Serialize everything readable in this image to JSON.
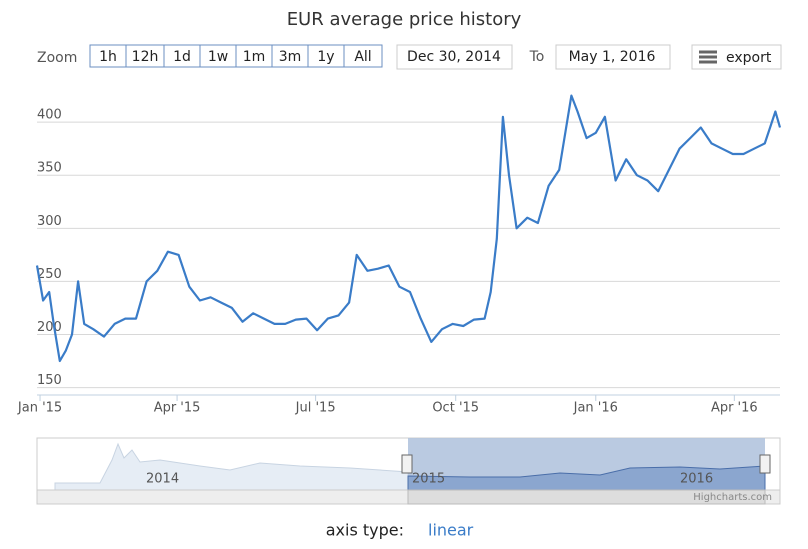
{
  "chart_data": {
    "type": "line",
    "title": "EUR average price history",
    "color": "#3a7cc8",
    "x": [
      "2014-12-30",
      "2015-01-03",
      "2015-01-07",
      "2015-01-10",
      "2015-01-14",
      "2015-01-18",
      "2015-01-22",
      "2015-01-26",
      "2015-01-30",
      "2015-02-05",
      "2015-02-12",
      "2015-02-19",
      "2015-02-26",
      "2015-03-05",
      "2015-03-12",
      "2015-03-19",
      "2015-03-26",
      "2015-04-02",
      "2015-04-09",
      "2015-04-16",
      "2015-04-23",
      "2015-04-30",
      "2015-05-07",
      "2015-05-14",
      "2015-05-21",
      "2015-05-28",
      "2015-06-04",
      "2015-06-11",
      "2015-06-18",
      "2015-06-25",
      "2015-07-02",
      "2015-07-09",
      "2015-07-16",
      "2015-07-23",
      "2015-07-28",
      "2015-08-04",
      "2015-08-11",
      "2015-08-18",
      "2015-08-25",
      "2015-09-01",
      "2015-09-08",
      "2015-09-15",
      "2015-09-22",
      "2015-09-29",
      "2015-10-06",
      "2015-10-13",
      "2015-10-20",
      "2015-10-24",
      "2015-10-28",
      "2015-11-01",
      "2015-11-05",
      "2015-11-10",
      "2015-11-17",
      "2015-11-24",
      "2015-12-01",
      "2015-12-08",
      "2015-12-16",
      "2015-12-20",
      "2015-12-26",
      "2016-01-01",
      "2016-01-07",
      "2016-01-14",
      "2016-01-21",
      "2016-01-28",
      "2016-02-04",
      "2016-02-11",
      "2016-02-18",
      "2016-02-25",
      "2016-03-03",
      "2016-03-10",
      "2016-03-17",
      "2016-03-24",
      "2016-03-31",
      "2016-04-07",
      "2016-04-14",
      "2016-04-21",
      "2016-04-28",
      "2016-05-01"
    ],
    "values": [
      265,
      232,
      240,
      210,
      175,
      185,
      200,
      250,
      210,
      205,
      198,
      210,
      215,
      215,
      250,
      260,
      278,
      275,
      245,
      232,
      235,
      230,
      225,
      212,
      220,
      215,
      210,
      210,
      214,
      215,
      204,
      215,
      218,
      230,
      275,
      260,
      262,
      265,
      245,
      240,
      215,
      193,
      205,
      210,
      208,
      214,
      215,
      240,
      290,
      405,
      350,
      300,
      310,
      305,
      340,
      355,
      425,
      410,
      385,
      390,
      405,
      345,
      365,
      350,
      345,
      335,
      355,
      375,
      385,
      395,
      380,
      375,
      370,
      370,
      375,
      380,
      410,
      395
    ],
    "xlim": [
      "2014-12-30",
      "2016-05-01"
    ],
    "xticks": [
      {
        "value": "2015-01-01",
        "label": "Jan '15"
      },
      {
        "value": "2015-04-01",
        "label": "Apr '15"
      },
      {
        "value": "2015-07-01",
        "label": "Jul '15"
      },
      {
        "value": "2015-10-01",
        "label": "Oct '15"
      },
      {
        "value": "2016-01-01",
        "label": "Jan '16"
      },
      {
        "value": "2016-04-01",
        "label": "Apr '16"
      }
    ],
    "ylim": [
      143,
      435
    ],
    "yticks": [
      150,
      200,
      250,
      300,
      350,
      400
    ],
    "grid": true
  },
  "range_selector": {
    "zoom_label": "Zoom",
    "buttons": [
      "1h",
      "12h",
      "1d",
      "1w",
      "1m",
      "3m",
      "1y",
      "All"
    ],
    "from": "Dec 30, 2014",
    "to_label": "To",
    "to": "May 1, 2016"
  },
  "export": "export",
  "navigator_labels": [
    "2014",
    "2015",
    "2016"
  ],
  "credits": "Highcharts.com",
  "footer": {
    "label": "axis type:",
    "link": "linear"
  }
}
